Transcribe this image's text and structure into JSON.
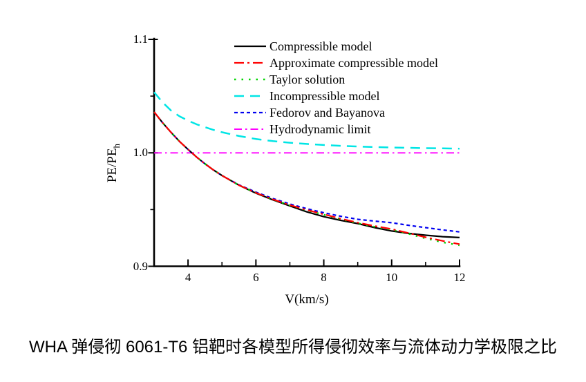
{
  "figure": {
    "caption": "WHA 弹侵彻 6061-T6 铝靶时各模型所得侵彻效率与流体动力学极限之比"
  },
  "chart_data": {
    "type": "line",
    "title": "",
    "xlabel": "V(km/s)",
    "ylabel": "PE/PE",
    "ylabel_subscript": "h",
    "xlim": [
      3,
      12
    ],
    "ylim": [
      0.9,
      1.1
    ],
    "x_major_ticks": [
      4,
      6,
      8,
      10,
      12
    ],
    "x_minor_ticks": [
      5,
      7,
      9,
      11
    ],
    "x_tick_labels": [
      "4",
      "6",
      "8",
      "10",
      "12"
    ],
    "y_major_ticks": [
      0.9,
      1.0,
      1.1
    ],
    "y_minor_ticks": [
      0.95,
      1.05
    ],
    "y_tick_labels": [
      "0.9",
      "1.0",
      "1.1"
    ],
    "grid": false,
    "legend_position": "top-inside",
    "axis_color": "#000000",
    "draw_order": [
      3,
      5,
      0,
      4,
      2,
      1
    ],
    "series": [
      {
        "id": "compressible-model",
        "name": "Compressible model",
        "color": "#000000",
        "dash": "",
        "width": 2.2,
        "x": [
          3,
          3.25,
          3.5,
          3.75,
          4,
          4.25,
          4.5,
          4.75,
          5,
          5.5,
          6,
          6.5,
          7,
          7.5,
          8,
          8.5,
          9,
          9.5,
          10,
          10.5,
          11,
          11.5,
          12
        ],
        "y": [
          1.036,
          1.0265,
          1.018,
          1.01,
          1.003,
          0.9963,
          0.9903,
          0.9849,
          0.98,
          0.9715,
          0.9645,
          0.9585,
          0.9532,
          0.948,
          0.9437,
          0.9405,
          0.9376,
          0.9341,
          0.9311,
          0.929,
          0.9274,
          0.9261,
          0.9253
        ]
      },
      {
        "id": "approximate-compressible-model",
        "name": "Approximate compressible model",
        "color": "#FF0000",
        "dash": "14 5 3 5",
        "width": 2.2,
        "x": [
          3,
          3.25,
          3.5,
          3.75,
          4,
          4.25,
          4.5,
          4.75,
          5,
          5.5,
          6,
          6.5,
          7,
          7.5,
          8,
          8.5,
          9,
          9.5,
          10,
          10.5,
          11,
          11.5,
          12
        ],
        "y": [
          1.036,
          1.0265,
          1.018,
          1.01,
          1.003,
          0.9963,
          0.9903,
          0.9849,
          0.98,
          0.9715,
          0.9648,
          0.959,
          0.954,
          0.9497,
          0.9458,
          0.942,
          0.9385,
          0.9355,
          0.9328,
          0.9293,
          0.9256,
          0.9224,
          0.9195
        ]
      },
      {
        "id": "taylor-solution",
        "name": "Taylor solution",
        "color": "#00D400",
        "dash": "2.5 8",
        "width": 2.4,
        "x": [
          3,
          3.25,
          3.5,
          3.75,
          4,
          4.25,
          4.5,
          4.75,
          5,
          5.5,
          6,
          6.5,
          7,
          7.5,
          8,
          8.5,
          9,
          9.5,
          10,
          10.5,
          11,
          11.5,
          12
        ],
        "y": [
          1.036,
          1.0265,
          1.018,
          1.01,
          1.003,
          0.9963,
          0.9903,
          0.9849,
          0.98,
          0.9715,
          0.9648,
          0.9589,
          0.9538,
          0.9494,
          0.9454,
          0.9416,
          0.9379,
          0.9348,
          0.9322,
          0.9286,
          0.9246,
          0.9212,
          0.9185
        ]
      },
      {
        "id": "incompressible-model",
        "name": "Incompressible model",
        "color": "#00E5E5",
        "dash": "14 9",
        "width": 2.5,
        "x": [
          3,
          3.25,
          3.5,
          3.75,
          4,
          4.25,
          4.5,
          4.75,
          5,
          5.5,
          6,
          6.5,
          7,
          7.5,
          8,
          8.5,
          9,
          9.5,
          10,
          10.5,
          11,
          11.5,
          12
        ],
        "y": [
          1.0535,
          1.0445,
          1.0372,
          1.0322,
          1.0284,
          1.0252,
          1.0226,
          1.0202,
          1.0182,
          1.0148,
          1.0122,
          1.0103,
          1.0089,
          1.0078,
          1.0069,
          1.0062,
          1.0056,
          1.0051,
          1.0047,
          1.0044,
          1.0041,
          1.0039,
          1.0037
        ]
      },
      {
        "id": "fedorov-and-bayanova",
        "name": "Fedorov and Bayanova",
        "color": "#0000F0",
        "dash": "5 4",
        "width": 2.2,
        "x": [
          3,
          3.25,
          3.5,
          3.75,
          4,
          4.25,
          4.5,
          4.75,
          5,
          5.5,
          6,
          6.5,
          7,
          7.5,
          8,
          8.5,
          9,
          9.5,
          10,
          10.5,
          11,
          11.5,
          12
        ],
        "y": [
          1.036,
          1.0265,
          1.018,
          1.01,
          1.003,
          0.9963,
          0.9903,
          0.9849,
          0.98,
          0.9718,
          0.9654,
          0.9597,
          0.9549,
          0.9508,
          0.9472,
          0.9441,
          0.9414,
          0.9398,
          0.9384,
          0.9361,
          0.9341,
          0.9321,
          0.9303
        ]
      },
      {
        "id": "hydrodynamic-limit",
        "name": "Hydrodynamic limit",
        "color": "#FF00FF",
        "dash": "11 5 2.5 5",
        "width": 1.9,
        "x": [
          3,
          12
        ],
        "y": [
          1.0,
          1.0
        ]
      }
    ]
  }
}
